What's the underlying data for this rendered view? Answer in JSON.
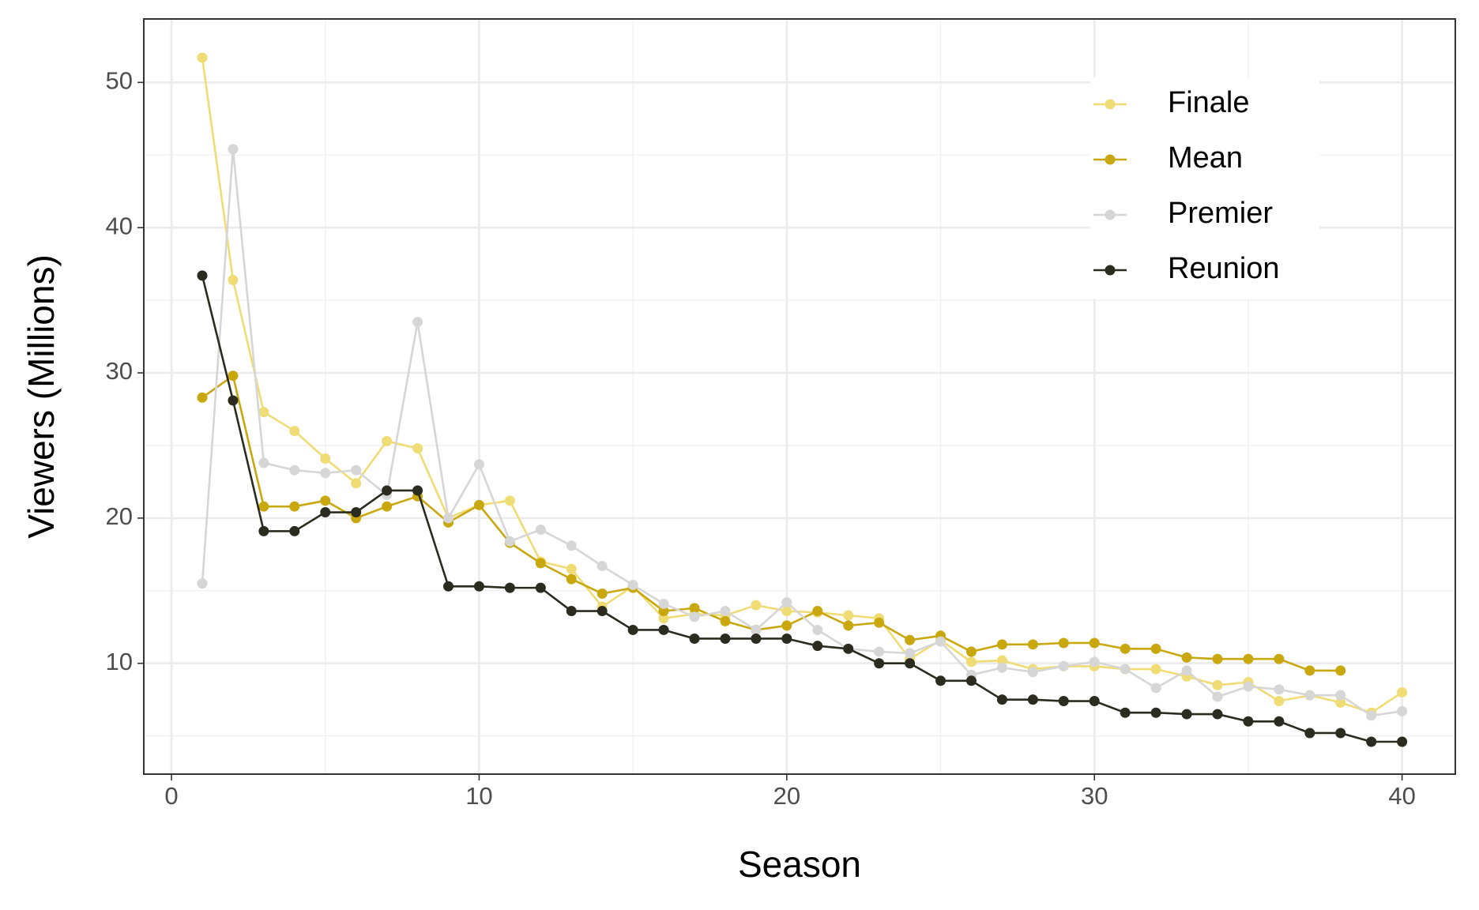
{
  "chart_data": {
    "type": "line",
    "x_label": "Season",
    "y_label": "Viewers (Millions)",
    "x": [
      1,
      2,
      3,
      4,
      5,
      6,
      7,
      8,
      9,
      10,
      11,
      12,
      13,
      14,
      15,
      16,
      17,
      18,
      19,
      20,
      21,
      22,
      23,
      24,
      25,
      26,
      27,
      28,
      29,
      30,
      31,
      32,
      33,
      34,
      35,
      36,
      37,
      38,
      39,
      40
    ],
    "series": [
      {
        "name": "Finale",
        "color": "#f0dc74",
        "values": [
          51.7,
          36.4,
          27.3,
          26.0,
          24.1,
          22.4,
          25.3,
          24.8,
          20.0,
          20.9,
          21.2,
          17.0,
          16.5,
          13.9,
          15.3,
          13.1,
          13.4,
          13.3,
          14.0,
          13.6,
          13.5,
          13.3,
          13.1,
          10.3,
          11.6,
          10.1,
          10.2,
          9.6,
          9.8,
          9.8,
          9.6,
          9.6,
          9.1,
          8.5,
          8.7,
          7.4,
          7.8,
          7.3,
          6.6,
          8.0
        ]
      },
      {
        "name": "Mean",
        "color": "#c9a80f",
        "values": [
          28.3,
          29.8,
          20.8,
          20.8,
          21.2,
          20.0,
          20.8,
          21.5,
          19.7,
          20.9,
          18.3,
          16.9,
          15.8,
          14.8,
          15.2,
          13.6,
          13.8,
          12.9,
          12.3,
          12.6,
          13.6,
          12.6,
          12.8,
          11.6,
          11.9,
          10.8,
          11.3,
          11.3,
          11.4,
          11.4,
          11.0,
          11.0,
          10.4,
          10.3,
          10.3,
          10.3,
          9.5,
          9.5,
          null,
          null
        ]
      },
      {
        "name": "Premier",
        "color": "#d6d6d6",
        "values": [
          15.5,
          45.4,
          23.8,
          23.3,
          23.1,
          23.3,
          21.6,
          33.5,
          20.0,
          23.7,
          18.4,
          19.2,
          18.1,
          16.7,
          15.4,
          14.1,
          13.2,
          13.6,
          12.3,
          14.2,
          12.3,
          11.0,
          10.8,
          10.7,
          11.5,
          9.2,
          9.7,
          9.4,
          9.8,
          10.1,
          9.6,
          8.3,
          9.5,
          7.7,
          8.4,
          8.2,
          7.8,
          7.8,
          6.4,
          6.7
        ]
      },
      {
        "name": "Reunion",
        "color": "#2b2b1f",
        "values": [
          36.7,
          28.1,
          19.1,
          19.1,
          20.4,
          20.4,
          21.9,
          21.9,
          15.3,
          15.3,
          15.2,
          15.2,
          13.6,
          13.6,
          12.3,
          12.3,
          11.7,
          11.7,
          11.7,
          11.7,
          11.2,
          11.0,
          10.0,
          10.0,
          8.8,
          8.8,
          7.5,
          7.5,
          7.4,
          7.4,
          6.6,
          6.6,
          6.5,
          6.5,
          6.0,
          6.0,
          5.2,
          5.2,
          4.6,
          4.6
        ]
      }
    ],
    "xlim": [
      -0.9,
      41.73
    ],
    "ylim": [
      2.37,
      54.37
    ],
    "xticks": [
      0,
      10,
      20,
      30,
      40
    ],
    "yticks": [
      10,
      20,
      30,
      40,
      50
    ],
    "xminor": [
      5,
      15,
      25,
      35
    ],
    "yminor": [
      5,
      15,
      25,
      35,
      45
    ],
    "grid": true,
    "legend": "top-right"
  }
}
